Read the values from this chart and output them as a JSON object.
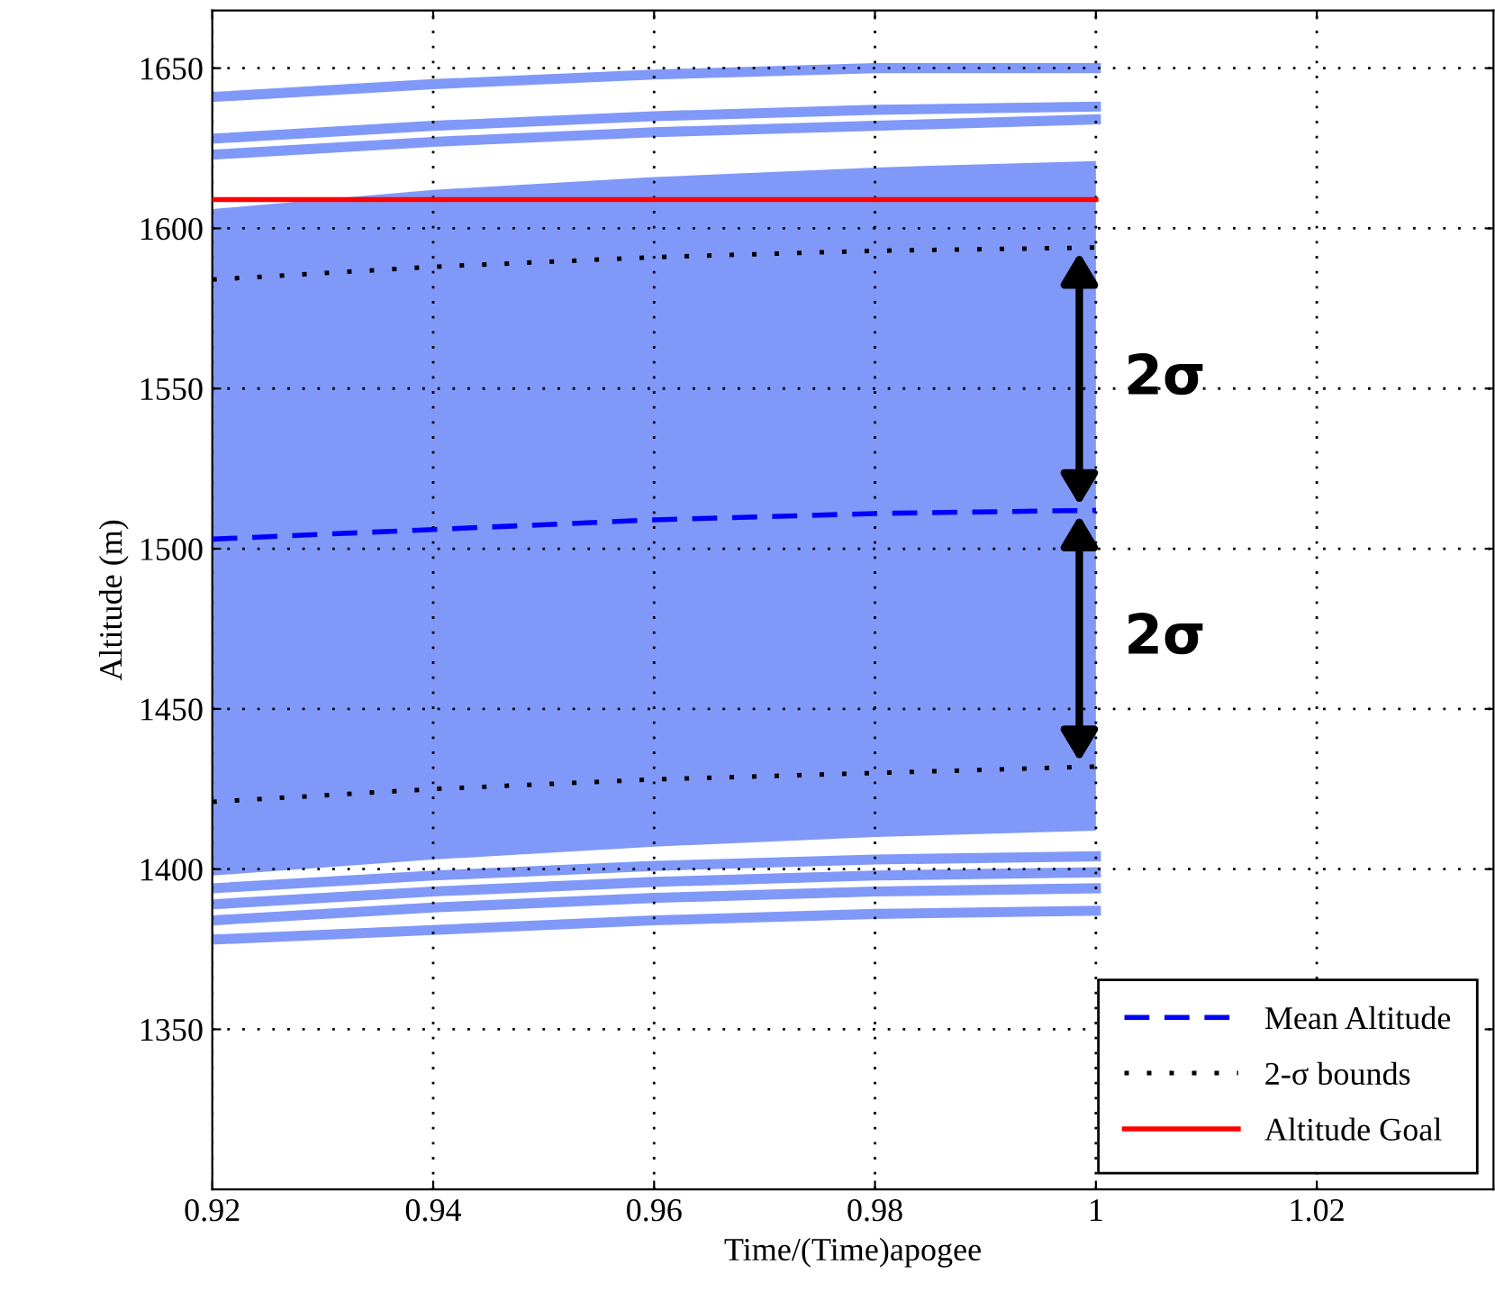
{
  "chart_data": {
    "type": "line",
    "xlabel": "Time/(Time)apogee",
    "ylabel": "Altitude (m)",
    "x": [
      0.92,
      0.94,
      0.96,
      0.98,
      1
    ],
    "series": [
      {
        "color": "#8099f8",
        "values": [
          1378,
          1381,
          1384,
          1386,
          1387
        ]
      },
      {
        "color": "#8099f8",
        "values": [
          1384,
          1388,
          1391,
          1393,
          1394
        ]
      },
      {
        "color": "#8099f8",
        "values": [
          1389,
          1393,
          1396,
          1398,
          1399
        ]
      },
      {
        "color": "#8099f8",
        "values": [
          1394,
          1398,
          1401,
          1403,
          1404
        ]
      },
      {
        "color": "#8099f8",
        "values": [
          1641,
          1645,
          1648,
          1650,
          1650
        ]
      },
      {
        "color": "#8099f8",
        "values": [
          1628,
          1632,
          1635,
          1637,
          1638
        ]
      },
      {
        "color": "#8099f8",
        "values": [
          1623,
          1627,
          1630,
          1632,
          1634
        ]
      },
      {
        "name": "Mean Altitude",
        "color": "#0000ff",
        "line_style": "dashed",
        "values": [
          1503,
          1506,
          1509,
          1511,
          1512
        ],
        "upper": [
          1606,
          1612,
          1616,
          1619,
          1621
        ],
        "lower": [
          1398,
          1403,
          1407,
          1410,
          1412
        ]
      },
      {
        "name": "2-σ bounds",
        "color": "#000000",
        "line_style": "dotted",
        "values": [
          1584,
          1588,
          1591,
          1593,
          1594
        ]
      },
      {
        "color": "#000000",
        "line_style": "dotted",
        "values": [
          1421,
          1425,
          1428,
          1430,
          1432
        ]
      },
      {
        "name": "Altitude Goal",
        "color": "#ff0000",
        "values": [
          1609,
          1609,
          1609,
          1609,
          1609
        ]
      }
    ],
    "annotations": [
      "2σ",
      "2σ"
    ],
    "xlim": [
      0.92,
      1.036
    ],
    "ylim": [
      1300,
      1668
    ],
    "xticks": [
      0.92,
      0.94,
      0.96,
      0.98,
      1,
      1.02
    ],
    "yticks": [
      1350,
      1400,
      1450,
      1500,
      1550,
      1600,
      1650
    ],
    "grid": true,
    "legend": "bottom right"
  }
}
